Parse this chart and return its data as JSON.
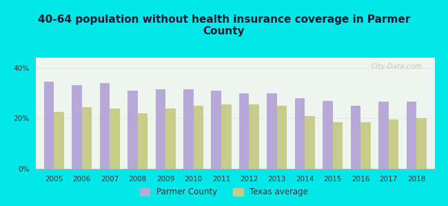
{
  "title": "40-64 population without health insurance coverage in Parmer\nCounty",
  "years": [
    2005,
    2006,
    2007,
    2008,
    2009,
    2010,
    2011,
    2012,
    2013,
    2014,
    2015,
    2016,
    2017,
    2018
  ],
  "parmer_values": [
    34.5,
    33.0,
    34.0,
    31.0,
    31.5,
    31.5,
    31.0,
    30.0,
    30.0,
    28.0,
    27.0,
    25.0,
    26.5,
    26.5
  ],
  "texas_values": [
    22.5,
    24.5,
    24.0,
    22.0,
    24.0,
    25.0,
    25.5,
    25.5,
    25.0,
    21.0,
    18.5,
    18.5,
    19.5,
    20.0
  ],
  "parmer_color": "#b8a8d8",
  "texas_color": "#c8cc88",
  "background_outer": "#00e8e8",
  "background_plot": "#eef5ee",
  "title_fontsize": 11,
  "title_color": "#1a1a2e",
  "ylabel_ticks": [
    "0%",
    "20%",
    "40%"
  ],
  "yticks": [
    0,
    20,
    40
  ],
  "ylim": [
    0,
    44
  ],
  "legend_parmer": "Parmer County",
  "legend_texas": "Texas average",
  "bar_width": 0.36,
  "grid_color": "#dddddd",
  "watermark": "City-Data.com",
  "tick_fontsize": 7.5
}
